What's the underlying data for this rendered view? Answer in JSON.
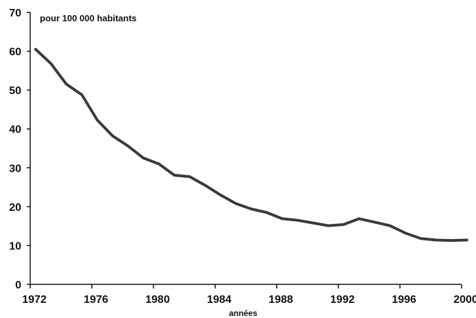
{
  "chart_data": {
    "type": "line",
    "unit_label": "pour 100 000 habitants",
    "xlabel": "années",
    "ylabel": "",
    "xlim": [
      1972,
      2000
    ],
    "ylim": [
      0,
      70
    ],
    "x_ticks": [
      1972,
      1976,
      1980,
      1984,
      1988,
      1992,
      1996,
      2000
    ],
    "y_ticks": [
      0,
      10,
      20,
      30,
      40,
      50,
      60,
      70
    ],
    "grid": false,
    "line_color": "#3a3a3a",
    "series": [
      {
        "x": [
          1972,
          1973,
          1974,
          1975,
          1976,
          1977,
          1978,
          1979,
          1980,
          1981,
          1982,
          1983,
          1984,
          1985,
          1986,
          1987,
          1988,
          1989,
          1990,
          1991,
          1992,
          1993,
          1994,
          1995,
          1996,
          1997,
          1998,
          1999,
          2000
        ],
        "y": [
          60.5,
          56.8,
          51.5,
          48.8,
          42.3,
          38.2,
          35.6,
          32.5,
          31.0,
          28.1,
          27.7,
          25.5,
          23.0,
          20.8,
          19.4,
          18.5,
          16.9,
          16.5,
          15.8,
          15.1,
          15.4,
          16.9,
          16.0,
          15.1,
          13.2,
          11.8,
          11.4,
          11.3,
          11.4
        ]
      }
    ]
  }
}
